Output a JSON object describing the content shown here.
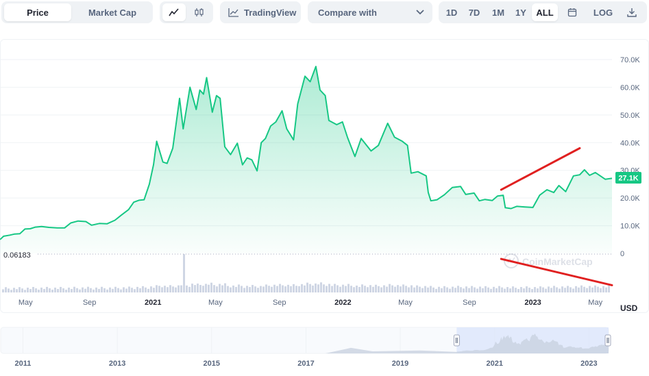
{
  "toolbar": {
    "tabs": [
      "Price",
      "Market Cap"
    ],
    "active_tab": "Price",
    "chart_type_icons": [
      "line-chart-icon",
      "candlestick-icon"
    ],
    "tradingview_label": "TradingView",
    "compare_label": "Compare with",
    "ranges": [
      "1D",
      "7D",
      "1M",
      "1Y",
      "ALL"
    ],
    "active_range": "ALL",
    "log_label": "LOG",
    "calendar_icon": "calendar-icon",
    "download_icon": "download-icon"
  },
  "currency_label": "USD",
  "current_price_tag": "27.1K",
  "low_label": "0.06183",
  "watermark": "CoinMarketCap",
  "colors": {
    "line": "#16c784",
    "area_top": "#16c784",
    "annotation": "#e02020",
    "volume": "#cfd6e4",
    "grid": "#eff2f5"
  },
  "chart_data": {
    "type": "area",
    "title": "",
    "xlabel": "",
    "ylabel": "",
    "ylim": [
      0,
      75000
    ],
    "y_ticks": [
      "0",
      "10.0K",
      "20.0K",
      "30.0K",
      "40.0K",
      "50.0K",
      "60.0K",
      "70.0K"
    ],
    "y_tick_values": [
      0,
      10000,
      20000,
      30000,
      40000,
      50000,
      60000,
      70000
    ],
    "x_ticks": [
      "May",
      "Sep",
      "2021",
      "May",
      "Sep",
      "2022",
      "May",
      "Sep",
      "2023",
      "May"
    ],
    "x_tick_dates": [
      "2020-05-01",
      "2020-09-01",
      "2021-01-01",
      "2021-05-01",
      "2021-09-01",
      "2022-01-01",
      "2022-05-01",
      "2022-09-01",
      "2023-01-01",
      "2023-05-01"
    ],
    "x_range": [
      "2020-03-13",
      "2023-06-02"
    ],
    "series": [
      {
        "values": [
          [
            "2020-03-13",
            5000
          ],
          [
            "2020-03-20",
            6200
          ],
          [
            "2020-04-01",
            6600
          ],
          [
            "2020-04-10",
            7000
          ],
          [
            "2020-04-20",
            7100
          ],
          [
            "2020-04-30",
            8800
          ],
          [
            "2020-05-10",
            8900
          ],
          [
            "2020-05-20",
            9500
          ],
          [
            "2020-06-01",
            9700
          ],
          [
            "2020-06-15",
            9400
          ],
          [
            "2020-07-01",
            9200
          ],
          [
            "2020-07-15",
            9200
          ],
          [
            "2020-07-27",
            11000
          ],
          [
            "2020-08-10",
            11700
          ],
          [
            "2020-08-25",
            11500
          ],
          [
            "2020-09-05",
            10200
          ],
          [
            "2020-09-20",
            10800
          ],
          [
            "2020-10-05",
            10700
          ],
          [
            "2020-10-20",
            12000
          ],
          [
            "2020-11-01",
            13800
          ],
          [
            "2020-11-15",
            15800
          ],
          [
            "2020-11-25",
            18500
          ],
          [
            "2020-12-05",
            19200
          ],
          [
            "2020-12-15",
            19400
          ],
          [
            "2020-12-25",
            25000
          ],
          [
            "2021-01-02",
            32000
          ],
          [
            "2021-01-08",
            40500
          ],
          [
            "2021-01-20",
            33000
          ],
          [
            "2021-01-28",
            32500
          ],
          [
            "2021-02-08",
            38000
          ],
          [
            "2021-02-21",
            56000
          ],
          [
            "2021-02-28",
            45000
          ],
          [
            "2021-03-13",
            60000
          ],
          [
            "2021-03-25",
            52000
          ],
          [
            "2021-04-01",
            59000
          ],
          [
            "2021-04-08",
            57500
          ],
          [
            "2021-04-14",
            63500
          ],
          [
            "2021-04-25",
            51000
          ],
          [
            "2021-05-03",
            57000
          ],
          [
            "2021-05-10",
            56000
          ],
          [
            "2021-05-19",
            38500
          ],
          [
            "2021-05-30",
            35700
          ],
          [
            "2021-06-12",
            39800
          ],
          [
            "2021-06-22",
            32000
          ],
          [
            "2021-07-01",
            34500
          ],
          [
            "2021-07-10",
            33800
          ],
          [
            "2021-07-20",
            29800
          ],
          [
            "2021-07-28",
            40000
          ],
          [
            "2021-08-05",
            41500
          ],
          [
            "2021-08-15",
            46000
          ],
          [
            "2021-08-25",
            47500
          ],
          [
            "2021-09-06",
            51500
          ],
          [
            "2021-09-15",
            45000
          ],
          [
            "2021-09-28",
            41000
          ],
          [
            "2021-10-06",
            54000
          ],
          [
            "2021-10-20",
            64000
          ],
          [
            "2021-10-30",
            62000
          ],
          [
            "2021-11-10",
            67500
          ],
          [
            "2021-11-18",
            59000
          ],
          [
            "2021-11-28",
            57000
          ],
          [
            "2021-12-05",
            48000
          ],
          [
            "2021-12-20",
            46500
          ],
          [
            "2021-12-31",
            47500
          ],
          [
            "2022-01-10",
            41800
          ],
          [
            "2022-01-24",
            35000
          ],
          [
            "2022-02-05",
            41500
          ],
          [
            "2022-02-24",
            37000
          ],
          [
            "2022-03-10",
            39000
          ],
          [
            "2022-03-28",
            47000
          ],
          [
            "2022-04-10",
            42000
          ],
          [
            "2022-04-25",
            40500
          ],
          [
            "2022-05-05",
            39000
          ],
          [
            "2022-05-12",
            29000
          ],
          [
            "2022-05-25",
            29500
          ],
          [
            "2022-06-10",
            28000
          ],
          [
            "2022-06-14",
            22000
          ],
          [
            "2022-06-19",
            19000
          ],
          [
            "2022-07-01",
            19400
          ],
          [
            "2022-07-15",
            21200
          ],
          [
            "2022-07-30",
            23800
          ],
          [
            "2022-08-15",
            24200
          ],
          [
            "2022-08-25",
            21300
          ],
          [
            "2022-09-10",
            21800
          ],
          [
            "2022-09-20",
            19000
          ],
          [
            "2022-10-01",
            19500
          ],
          [
            "2022-10-15",
            19100
          ],
          [
            "2022-10-25",
            20700
          ],
          [
            "2022-11-05",
            21000
          ],
          [
            "2022-11-09",
            16500
          ],
          [
            "2022-11-20",
            16200
          ],
          [
            "2022-12-01",
            17000
          ],
          [
            "2022-12-15",
            16800
          ],
          [
            "2023-01-01",
            16600
          ],
          [
            "2023-01-14",
            21000
          ],
          [
            "2023-01-28",
            23000
          ],
          [
            "2023-02-10",
            22000
          ],
          [
            "2023-02-20",
            24500
          ],
          [
            "2023-03-05",
            22300
          ],
          [
            "2023-03-20",
            28000
          ],
          [
            "2023-04-01",
            28400
          ],
          [
            "2023-04-10",
            30200
          ],
          [
            "2023-04-20",
            28200
          ],
          [
            "2023-05-01",
            29200
          ],
          [
            "2023-05-20",
            26800
          ],
          [
            "2023-06-02",
            27100
          ]
        ]
      }
    ],
    "navigator": {
      "x_ticks": [
        "2011",
        "2013",
        "2015",
        "2017",
        "2019",
        "2021",
        "2023"
      ],
      "x_tick_dates": [
        "2011-01-01",
        "2013-01-01",
        "2015-01-01",
        "2017-01-01",
        "2019-01-01",
        "2021-01-01",
        "2023-01-01"
      ],
      "x_range": [
        "2010-07-13",
        "2023-06-02"
      ],
      "selection": [
        "2020-03-13",
        "2023-06-02"
      ]
    },
    "annotations": [
      {
        "type": "line",
        "from": [
          "2022-11-01",
          23000
        ],
        "to": [
          "2023-04-01",
          38000
        ]
      },
      {
        "type": "line",
        "from": [
          "2022-11-01",
          -2000
        ],
        "to": [
          "2023-06-02",
          -11500
        ]
      }
    ],
    "legend": "none",
    "grid": true
  }
}
